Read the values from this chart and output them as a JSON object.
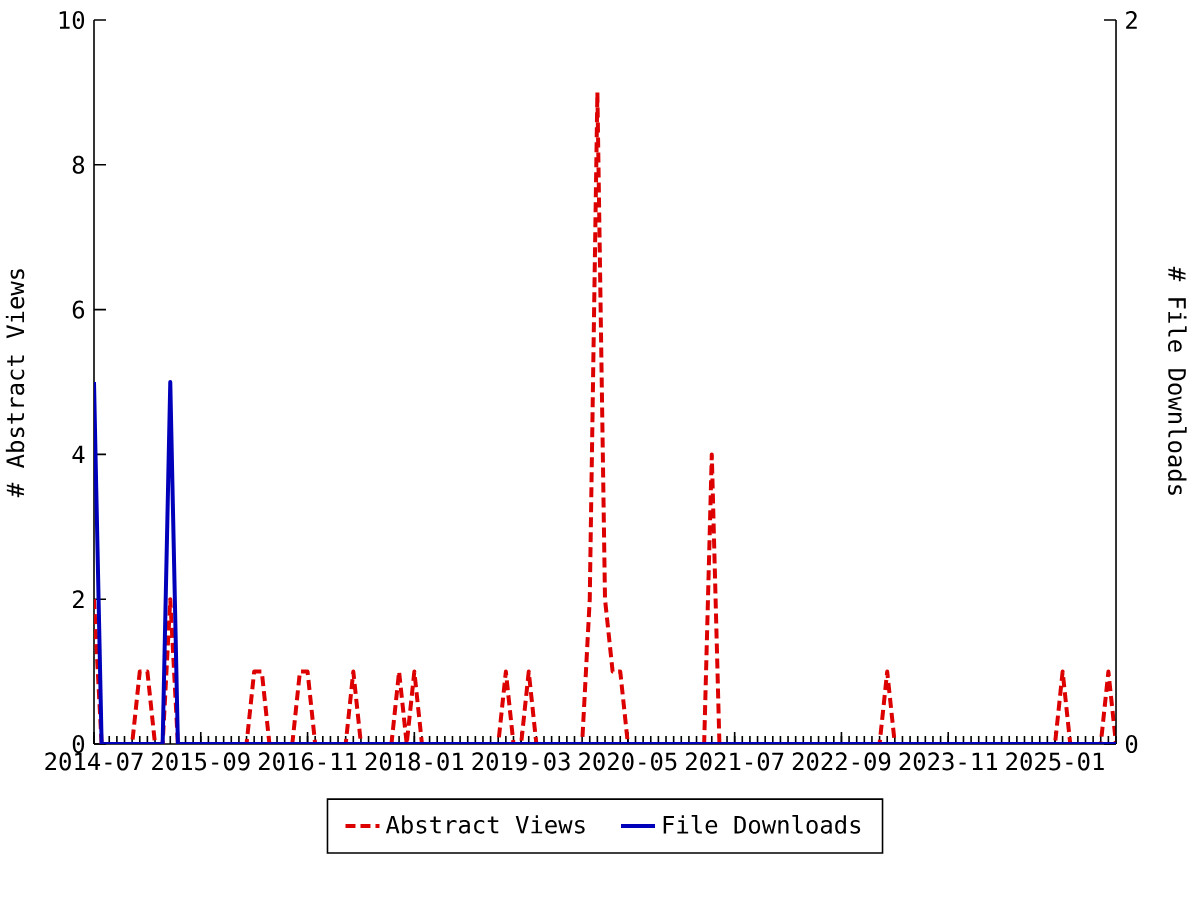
{
  "chart_data": {
    "type": "line",
    "ylabel": "# Abstract Views",
    "y2label": "# File Downloads",
    "x": [
      "2014-07",
      "2014-08",
      "2014-09",
      "2014-10",
      "2014-11",
      "2014-12",
      "2015-01",
      "2015-02",
      "2015-03",
      "2015-04",
      "2015-05",
      "2015-06",
      "2015-07",
      "2015-08",
      "2015-09",
      "2015-10",
      "2015-11",
      "2015-12",
      "2016-01",
      "2016-02",
      "2016-03",
      "2016-04",
      "2016-05",
      "2016-06",
      "2016-07",
      "2016-08",
      "2016-09",
      "2016-10",
      "2016-11",
      "2016-12",
      "2017-01",
      "2017-02",
      "2017-03",
      "2017-04",
      "2017-05",
      "2017-06",
      "2017-07",
      "2017-08",
      "2017-09",
      "2017-10",
      "2017-11",
      "2017-12",
      "2018-01",
      "2018-02",
      "2018-03",
      "2018-04",
      "2018-05",
      "2018-06",
      "2018-07",
      "2018-08",
      "2018-09",
      "2018-10",
      "2018-11",
      "2018-12",
      "2019-01",
      "2019-02",
      "2019-03",
      "2019-04",
      "2019-05",
      "2019-06",
      "2019-07",
      "2019-08",
      "2019-09",
      "2019-10",
      "2019-11",
      "2019-12",
      "2020-01",
      "2020-02",
      "2020-03",
      "2020-04",
      "2020-05",
      "2020-06",
      "2020-07",
      "2020-08",
      "2020-09",
      "2020-10",
      "2020-11",
      "2020-12",
      "2021-01",
      "2021-02",
      "2021-03",
      "2021-04",
      "2021-05",
      "2021-06",
      "2021-07",
      "2021-08",
      "2021-09",
      "2021-10",
      "2021-11",
      "2021-12",
      "2022-01",
      "2022-02",
      "2022-03",
      "2022-04",
      "2022-05",
      "2022-06",
      "2022-07",
      "2022-08",
      "2022-09",
      "2022-10",
      "2022-11",
      "2022-12",
      "2023-01",
      "2023-02",
      "2023-03",
      "2023-04",
      "2023-05",
      "2023-06",
      "2023-07",
      "2023-08",
      "2023-09",
      "2023-10",
      "2023-11",
      "2023-12",
      "2024-01",
      "2024-02",
      "2024-03",
      "2024-04",
      "2024-05",
      "2024-06",
      "2024-07",
      "2024-08",
      "2024-09",
      "2024-10",
      "2024-11",
      "2024-12",
      "2025-01",
      "2025-02",
      "2025-03",
      "2025-04",
      "2025-05",
      "2025-06",
      "2025-07",
      "2025-08",
      "2025-09"
    ],
    "series": [
      {
        "name": "Abstract Views",
        "color": "#dd0000",
        "line_style": "dashed",
        "values": [
          2,
          0,
          0,
          0,
          0,
          0,
          1,
          1,
          0,
          0,
          2,
          0,
          0,
          0,
          0,
          0,
          0,
          0,
          0,
          0,
          0,
          1,
          1,
          0,
          0,
          0,
          0,
          1,
          1,
          0,
          0,
          0,
          0,
          0,
          1,
          0,
          0,
          0,
          0,
          0,
          1,
          0,
          1,
          0,
          0,
          0,
          0,
          0,
          0,
          0,
          0,
          0,
          0,
          0,
          1,
          0,
          0,
          1,
          0,
          0,
          0,
          0,
          0,
          0,
          0,
          2,
          9,
          2,
          1,
          1,
          0,
          0,
          0,
          0,
          0,
          0,
          0,
          0,
          0,
          0,
          0,
          4,
          0,
          0,
          0,
          0,
          0,
          0,
          0,
          0,
          0,
          0,
          0,
          0,
          0,
          0,
          0,
          0,
          0,
          0,
          0,
          0,
          0,
          0,
          1,
          0,
          0,
          0,
          0,
          0,
          0,
          0,
          0,
          0,
          0,
          0,
          0,
          0,
          0,
          0,
          0,
          0,
          0,
          0,
          0,
          0,
          0,
          1,
          0,
          0,
          0,
          0,
          0,
          1,
          0
        ]
      },
      {
        "name": "File Downloads",
        "color": "#0000bb",
        "line_style": "solid",
        "axis": "y2",
        "values": [
          1,
          0,
          0,
          0,
          0,
          0,
          0,
          0,
          0,
          0,
          1,
          0,
          0,
          0,
          0,
          0,
          0,
          0,
          0,
          0,
          0,
          0,
          0,
          0,
          0,
          0,
          0,
          0,
          0,
          0,
          0,
          0,
          0,
          0,
          0,
          0,
          0,
          0,
          0,
          0,
          0,
          0,
          0,
          0,
          0,
          0,
          0,
          0,
          0,
          0,
          0,
          0,
          0,
          0,
          0,
          0,
          0,
          0,
          0,
          0,
          0,
          0,
          0,
          0,
          0,
          0,
          0,
          0,
          0,
          0,
          0,
          0,
          0,
          0,
          0,
          0,
          0,
          0,
          0,
          0,
          0,
          0,
          0,
          0,
          0,
          0,
          0,
          0,
          0,
          0,
          0,
          0,
          0,
          0,
          0,
          0,
          0,
          0,
          0,
          0,
          0,
          0,
          0,
          0,
          0,
          0,
          0,
          0,
          0,
          0,
          0,
          0,
          0,
          0,
          0,
          0,
          0,
          0,
          0,
          0,
          0,
          0,
          0,
          0,
          0,
          0,
          0,
          0,
          0,
          0,
          0,
          0,
          0,
          0,
          0
        ]
      }
    ],
    "xlim": [
      "2014-07",
      "2025-09"
    ],
    "xticks": [
      "2014-07",
      "2015-09",
      "2016-11",
      "2018-01",
      "2019-03",
      "2020-05",
      "2021-07",
      "2022-09",
      "2023-11",
      "2025-01"
    ],
    "ylim": [
      0,
      10
    ],
    "yticks": [
      0,
      2,
      4,
      6,
      8,
      10
    ],
    "y2lim": [
      0,
      2
    ],
    "y2ticks": [
      0,
      2
    ],
    "grid": false,
    "legend": "bottom",
    "marker": "none"
  }
}
